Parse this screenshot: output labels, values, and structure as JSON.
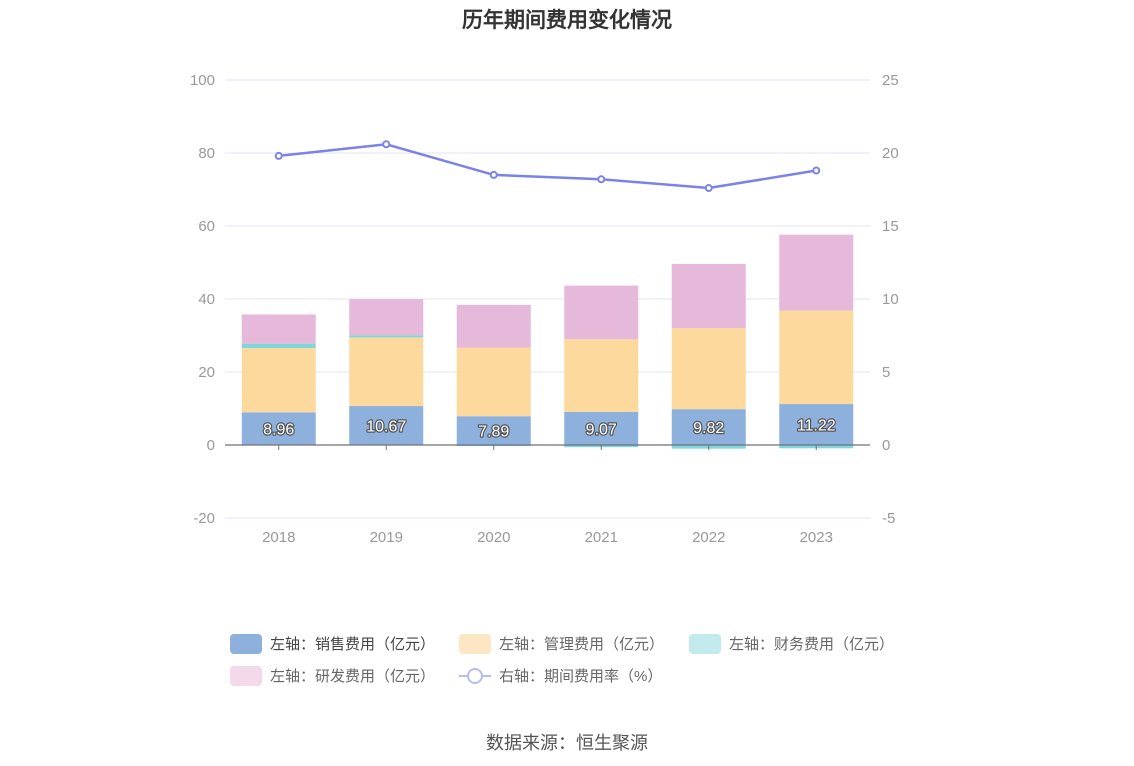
{
  "chart_data": {
    "type": "bar",
    "title": "历年期间费用变化情况",
    "categories": [
      "2018",
      "2019",
      "2020",
      "2021",
      "2022",
      "2023"
    ],
    "left_axis": {
      "min": -20,
      "max": 100,
      "ticks": [
        "100",
        "80",
        "60",
        "40",
        "20",
        "0",
        "-20"
      ]
    },
    "right_axis": {
      "min": -5,
      "max": 25,
      "ticks": [
        "25",
        "20",
        "15",
        "10",
        "5",
        "0",
        "-5"
      ]
    },
    "series": [
      {
        "name": "左轴：销售费用（亿元）",
        "type": "bar",
        "axis": "left",
        "color": "#8eb0dc",
        "values": [
          8.96,
          10.67,
          7.89,
          9.07,
          9.82,
          11.22
        ],
        "labels": [
          "8.96",
          "10.67",
          "7.89",
          "9.07",
          "9.82",
          "11.22"
        ]
      },
      {
        "name": "左轴：管理费用（亿元）",
        "type": "bar",
        "axis": "left",
        "color": "#fdd99d",
        "values": [
          17.6,
          18.8,
          18.8,
          19.9,
          22.2,
          25.6
        ]
      },
      {
        "name": "左轴：财务费用（亿元）",
        "type": "bar",
        "axis": "left",
        "color": "#7fd6dc",
        "values": [
          1.2,
          0.6,
          -0.3,
          -0.6,
          -1.0,
          -0.9
        ]
      },
      {
        "name": "左轴：研发费用（亿元）",
        "type": "bar",
        "axis": "left",
        "color": "#e6b8da",
        "values": [
          8.0,
          9.9,
          11.7,
          14.7,
          17.6,
          20.8
        ]
      },
      {
        "name": "右轴：期间费用率（%）",
        "type": "line",
        "axis": "right",
        "color": "#7b82e8",
        "values": [
          19.8,
          20.6,
          18.5,
          18.2,
          17.6,
          18.8
        ]
      }
    ],
    "stack_order": [
      0,
      1,
      2,
      3
    ],
    "grid": true,
    "legend_position": "bottom"
  },
  "legend": {
    "items": [
      {
        "label": "左轴：销售费用（亿元）",
        "color": "#8eb0dc",
        "kind": "bar"
      },
      {
        "label": "左轴：管理费用（亿元）",
        "color": "#fde6c4",
        "kind": "bar"
      },
      {
        "label": "左轴：财务费用（亿元）",
        "color": "#c3eaed",
        "kind": "bar"
      },
      {
        "label": "左轴：研发费用（亿元）",
        "color": "#f3d9ea",
        "kind": "bar"
      },
      {
        "label": "右轴：期间费用率（%）",
        "color": "#b7bcf2",
        "kind": "line"
      }
    ]
  },
  "source": "数据来源：恒生聚源"
}
